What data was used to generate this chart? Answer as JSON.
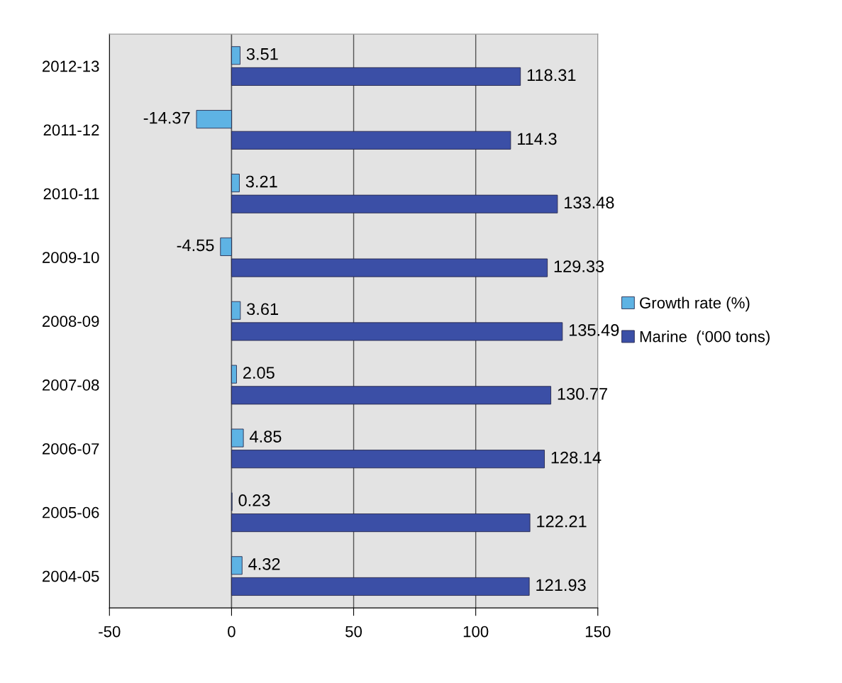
{
  "chart_data": {
    "type": "bar",
    "orientation": "horizontal",
    "categories": [
      "2012-13",
      "2011-12",
      "2010-11",
      "2009-10",
      "2008-09",
      "2007-08",
      "2006-07",
      "2005-06",
      "2004-05"
    ],
    "series": [
      {
        "name": "Growth rate (%)",
        "color": "#5eb3e4",
        "values": [
          3.51,
          -14.37,
          3.21,
          -4.55,
          3.61,
          2.05,
          4.85,
          0.23,
          4.32
        ]
      },
      {
        "name": "Marine  (‘000 tons)",
        "color": "#3b4fa6",
        "values": [
          118.31,
          114.3,
          133.48,
          129.33,
          135.49,
          130.77,
          128.14,
          122.21,
          121.93
        ]
      }
    ],
    "xlim": [
      -50,
      150
    ],
    "xticks": [
      -50,
      0,
      50,
      100,
      150
    ],
    "data_labels": true,
    "grid": "x",
    "legend": "right"
  }
}
